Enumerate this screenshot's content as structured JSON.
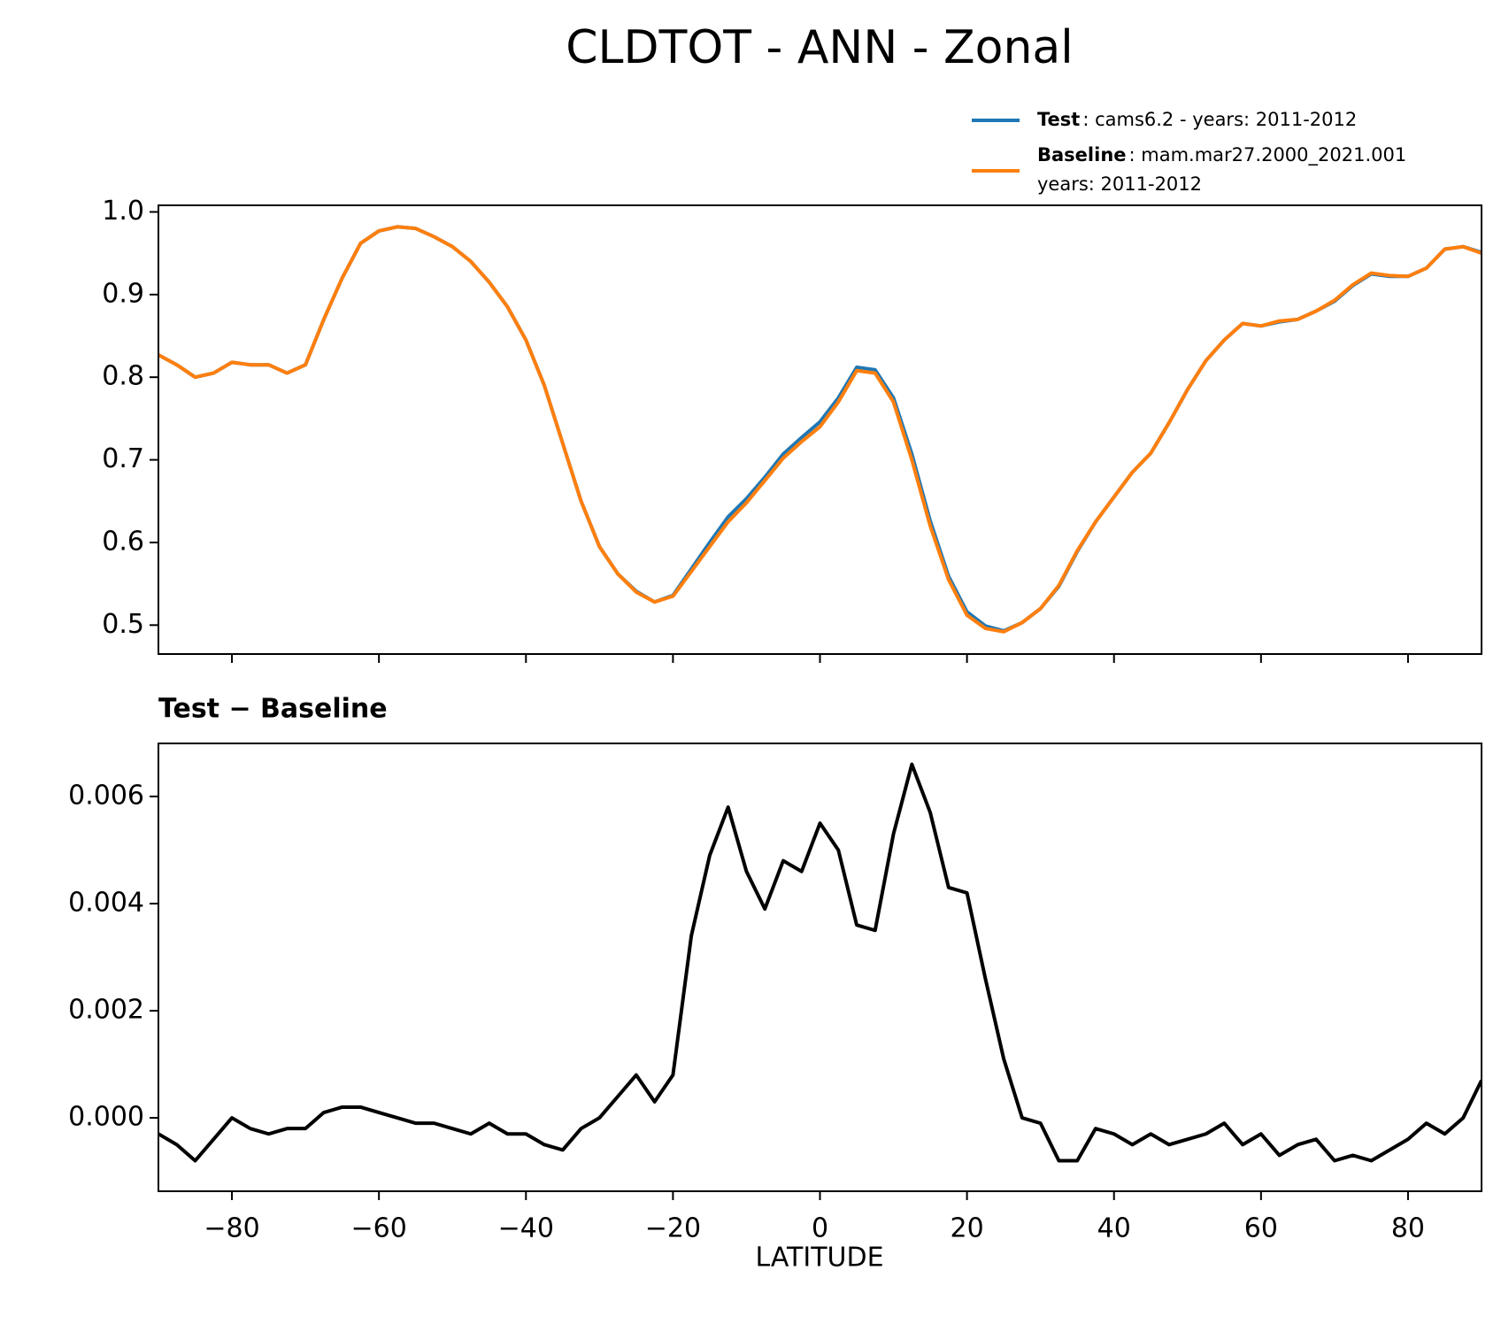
{
  "title": "CLDTOT - ANN - Zonal",
  "chart_data": [
    {
      "type": "line",
      "x": [
        -90,
        -87.5,
        -85,
        -82.5,
        -80,
        -77.5,
        -75,
        -72.5,
        -70,
        -67.5,
        -65,
        -62.5,
        -60,
        -57.5,
        -55,
        -52.5,
        -50,
        -47.5,
        -45,
        -42.5,
        -40,
        -37.5,
        -35,
        -32.5,
        -30,
        -27.5,
        -25,
        -22.5,
        -20,
        -17.5,
        -15,
        -12.5,
        -10,
        -7.5,
        -5,
        -2.5,
        0,
        2.5,
        5,
        7.5,
        10,
        12.5,
        15,
        17.5,
        20,
        22.5,
        25,
        27.5,
        30,
        32.5,
        35,
        37.5,
        40,
        42.5,
        45,
        47.5,
        50,
        52.5,
        55,
        57.5,
        60,
        62.5,
        65,
        67.5,
        70,
        72.5,
        75,
        77.5,
        80,
        82.5,
        85,
        87.5,
        90
      ],
      "series": [
        {
          "name": "Test",
          "description": ": cams6.2 - years: 2011-2012",
          "color": "#1f77b4",
          "values": [
            0.827,
            0.815,
            0.8,
            0.805,
            0.818,
            0.815,
            0.815,
            0.805,
            0.815,
            0.87,
            0.92,
            0.962,
            0.977,
            0.982,
            0.98,
            0.97,
            0.958,
            0.94,
            0.915,
            0.885,
            0.845,
            0.79,
            0.72,
            0.65,
            0.595,
            0.562,
            0.541,
            0.528,
            0.536,
            0.568,
            0.6,
            0.631,
            0.653,
            0.679,
            0.707,
            0.727,
            0.746,
            0.775,
            0.812,
            0.809,
            0.775,
            0.707,
            0.626,
            0.559,
            0.516,
            0.499,
            0.493,
            0.503,
            0.52,
            0.547,
            0.589,
            0.625,
            0.655,
            0.685,
            0.708,
            0.745,
            0.785,
            0.82,
            0.845,
            0.865,
            0.862,
            0.867,
            0.87,
            0.88,
            0.892,
            0.911,
            0.925,
            0.922,
            0.922,
            0.932,
            0.955,
            0.958,
            0.951
          ]
        },
        {
          "name": "Baseline",
          "description": [
            ": mam.mar27.2000_2021.001",
            "years: 2011-2012"
          ],
          "color": "#ff7f0e",
          "values": [
            0.827,
            0.815,
            0.8,
            0.805,
            0.818,
            0.815,
            0.815,
            0.805,
            0.815,
            0.87,
            0.92,
            0.962,
            0.977,
            0.982,
            0.98,
            0.97,
            0.958,
            0.94,
            0.915,
            0.885,
            0.845,
            0.79,
            0.72,
            0.65,
            0.595,
            0.562,
            0.54,
            0.528,
            0.535,
            0.565,
            0.595,
            0.625,
            0.648,
            0.675,
            0.702,
            0.722,
            0.74,
            0.77,
            0.808,
            0.805,
            0.77,
            0.7,
            0.62,
            0.555,
            0.512,
            0.496,
            0.492,
            0.503,
            0.52,
            0.548,
            0.59,
            0.625,
            0.655,
            0.685,
            0.708,
            0.745,
            0.785,
            0.82,
            0.845,
            0.865,
            0.862,
            0.868,
            0.87,
            0.88,
            0.893,
            0.912,
            0.926,
            0.923,
            0.922,
            0.932,
            0.955,
            0.958,
            0.95
          ]
        }
      ],
      "xlim": [
        -90,
        90
      ],
      "ylim": [
        0.465,
        1.008
      ],
      "yticks": [
        0.5,
        0.6,
        0.7,
        0.8,
        0.9,
        {
          "value": 1,
          "label": "1.0"
        }
      ],
      "sharex": true
    },
    {
      "type": "line",
      "title": "Test − Baseline",
      "x_label": "LATITUDE",
      "x": [
        -90,
        -87.5,
        -85,
        -82.5,
        -80,
        -77.5,
        -75,
        -72.5,
        -70,
        -67.5,
        -65,
        -62.5,
        -60,
        -57.5,
        -55,
        -52.5,
        -50,
        -47.5,
        -45,
        -42.5,
        -40,
        -37.5,
        -35,
        -32.5,
        -30,
        -27.5,
        -25,
        -22.5,
        -20,
        -17.5,
        -15,
        -12.5,
        -10,
        -7.5,
        -5,
        -2.5,
        0,
        2.5,
        5,
        7.5,
        10,
        12.5,
        15,
        17.5,
        20,
        22.5,
        25,
        27.5,
        30,
        32.5,
        35,
        37.5,
        40,
        42.5,
        45,
        47.5,
        50,
        52.5,
        55,
        57.5,
        60,
        62.5,
        65,
        67.5,
        70,
        72.5,
        75,
        77.5,
        80,
        82.5,
        85,
        87.5,
        90
      ],
      "color": "#000000",
      "values": [
        -0.0003,
        -0.0005,
        -0.0008,
        -0.0004,
        0,
        -0.0002,
        -0.0003,
        -0.0002,
        -0.0002,
        0.0001,
        0.0002,
        0.0002,
        0.0001,
        0,
        -0.0001,
        -0.0001,
        -0.0002,
        -0.0003,
        -0.0001,
        -0.0003,
        -0.0003,
        -0.0005,
        -0.0006,
        -0.0002,
        0,
        0.0004,
        0.0008,
        0.0003,
        0.0008,
        0.0034,
        0.0049,
        0.0058,
        0.0046,
        0.0039,
        0.0048,
        0.0046,
        0.0055,
        0.005,
        0.0036,
        0.0035,
        0.0053,
        0.0066,
        0.0057,
        0.0043,
        0.0042,
        0.0026,
        0.0011,
        0,
        -0.0001,
        -0.0008,
        -0.0008,
        -0.0002,
        -0.0003,
        -0.0005,
        -0.0003,
        -0.0005,
        -0.0004,
        -0.0003,
        -0.0001,
        -0.0005,
        -0.0003,
        -0.0007,
        -0.0005,
        -0.0004,
        -0.0008,
        -0.0007,
        -0.0008,
        -0.0006,
        -0.0004,
        -0.0001,
        -0.0003,
        0,
        0.0007
      ],
      "xlim": [
        -90,
        90
      ],
      "xticks": [
        {
          "value": -80,
          "label": "−80"
        },
        {
          "value": -60,
          "label": "−60"
        },
        {
          "value": -40,
          "label": "−40"
        },
        {
          "value": -20,
          "label": "−20"
        },
        0,
        20,
        40,
        60,
        80
      ],
      "ylim": [
        -0.00137,
        0.00699
      ],
      "yticks": [
        {
          "value": 0,
          "label": "0.000"
        },
        0.002,
        0.004,
        0.006
      ]
    }
  ]
}
